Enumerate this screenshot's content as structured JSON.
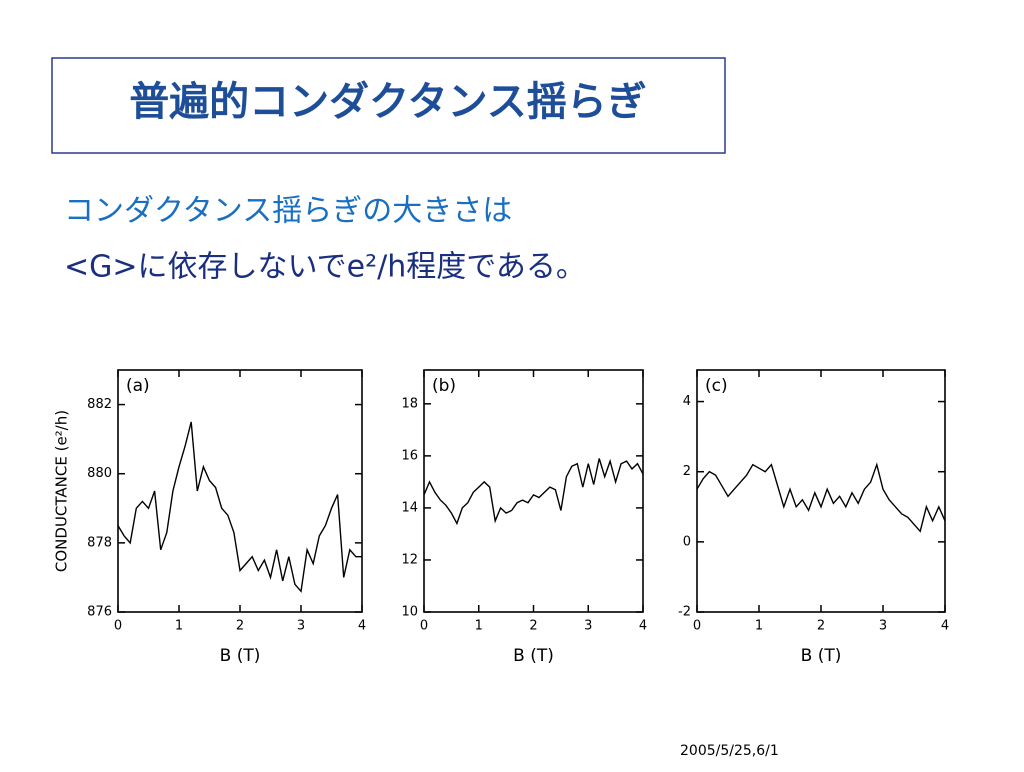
{
  "slide": {
    "title": "普遍的コンダクタンス揺らぎ",
    "body": [
      "コンダクタンス揺らぎの大きさは",
      "<G>に依存しないでe²/h程度である。"
    ],
    "footer": "2005/5/25,6/1"
  },
  "chart_data": [
    {
      "type": "line",
      "annotation": "(a)",
      "x_label": "B (T)",
      "y_label": "CONDUCTANCE (e²/h)",
      "color": "#000000",
      "x": [
        0,
        0.1,
        0.2,
        0.3,
        0.4,
        0.5,
        0.6,
        0.7,
        0.8,
        0.9,
        1,
        1.1,
        1.2,
        1.3,
        1.4,
        1.5,
        1.6,
        1.7,
        1.8,
        1.9,
        2,
        2.1,
        2.2,
        2.3,
        2.4,
        2.5,
        2.6,
        2.7,
        2.8,
        2.9,
        3,
        3.1,
        3.2,
        3.3,
        3.4,
        3.5,
        3.6,
        3.7,
        3.8,
        3.9,
        4
      ],
      "values": [
        878.5,
        878.2,
        878.0,
        879.0,
        879.2,
        879.0,
        879.5,
        877.8,
        878.3,
        879.5,
        880.2,
        880.8,
        881.5,
        879.5,
        880.2,
        879.8,
        879.6,
        879.0,
        878.8,
        878.3,
        877.2,
        877.4,
        877.6,
        877.2,
        877.5,
        877.0,
        877.8,
        876.9,
        877.6,
        876.8,
        876.6,
        877.8,
        877.4,
        878.2,
        878.5,
        879.0,
        879.4,
        877.0,
        877.8,
        877.6,
        877.6
      ],
      "xlim": [
        0,
        4
      ],
      "xticks": [
        0,
        1,
        2,
        3,
        4
      ],
      "ylim": [
        876,
        883
      ],
      "yticks": [
        876,
        878,
        880,
        882
      ]
    },
    {
      "type": "line",
      "annotation": "(b)",
      "x_label": "B (T)",
      "color": "#000000",
      "x": [
        0,
        0.1,
        0.2,
        0.3,
        0.4,
        0.5,
        0.6,
        0.7,
        0.8,
        0.9,
        1,
        1.1,
        1.2,
        1.3,
        1.4,
        1.5,
        1.6,
        1.7,
        1.8,
        1.9,
        2,
        2.1,
        2.2,
        2.3,
        2.4,
        2.5,
        2.6,
        2.7,
        2.8,
        2.9,
        3,
        3.1,
        3.2,
        3.3,
        3.4,
        3.5,
        3.6,
        3.7,
        3.8,
        3.9,
        4
      ],
      "values": [
        14.5,
        15.0,
        14.6,
        14.3,
        14.1,
        13.8,
        13.4,
        14.0,
        14.2,
        14.6,
        14.8,
        15.0,
        14.8,
        13.5,
        14.0,
        13.8,
        13.9,
        14.2,
        14.3,
        14.2,
        14.5,
        14.4,
        14.6,
        14.8,
        14.7,
        13.9,
        15.2,
        15.6,
        15.7,
        14.8,
        15.7,
        14.9,
        15.9,
        15.2,
        15.8,
        15.0,
        15.7,
        15.8,
        15.5,
        15.7,
        15.3
      ],
      "xlim": [
        0,
        4
      ],
      "xticks": [
        0,
        1,
        2,
        3,
        4
      ],
      "ylim": [
        10,
        19.3
      ],
      "yticks": [
        10,
        12,
        14,
        16,
        18
      ]
    },
    {
      "type": "line",
      "annotation": "(c)",
      "x_label": "B (T)",
      "color": "#000000",
      "x": [
        0,
        0.1,
        0.2,
        0.3,
        0.4,
        0.5,
        0.6,
        0.7,
        0.8,
        0.9,
        1,
        1.1,
        1.2,
        1.3,
        1.4,
        1.5,
        1.6,
        1.7,
        1.8,
        1.9,
        2,
        2.1,
        2.2,
        2.3,
        2.4,
        2.5,
        2.6,
        2.7,
        2.8,
        2.9,
        3,
        3.1,
        3.2,
        3.3,
        3.4,
        3.5,
        3.6,
        3.7,
        3.8,
        3.9,
        4
      ],
      "values": [
        1.5,
        1.8,
        2.0,
        1.9,
        1.6,
        1.3,
        1.5,
        1.7,
        1.9,
        2.2,
        2.1,
        2.0,
        2.2,
        1.6,
        1.0,
        1.5,
        1.0,
        1.2,
        0.9,
        1.4,
        1.0,
        1.5,
        1.1,
        1.3,
        1.0,
        1.4,
        1.1,
        1.5,
        1.7,
        2.2,
        1.5,
        1.2,
        1.0,
        0.8,
        0.7,
        0.5,
        0.3,
        1.0,
        0.6,
        1.0,
        0.6
      ],
      "xlim": [
        0,
        4
      ],
      "xticks": [
        0,
        1,
        2,
        3,
        4
      ],
      "ylim": [
        -2,
        4.9
      ],
      "yticks": [
        -2,
        0,
        2,
        4
      ]
    }
  ]
}
